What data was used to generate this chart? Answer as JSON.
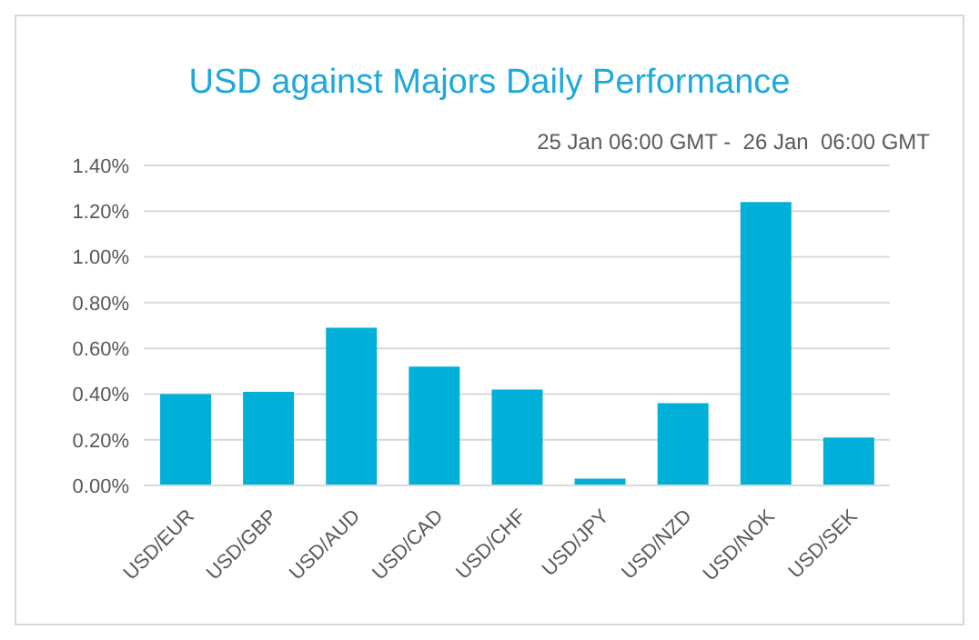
{
  "chart_data": {
    "type": "bar",
    "title": "USD against Majors Daily Performance",
    "subtitle": "25 Jan 06:00 GMT -  26 Jan  06:00 GMT",
    "categories": [
      "USD/EUR",
      "USD/GBP",
      "USD/AUD",
      "USD/CAD",
      "USD/CHF",
      "USD/JPY",
      "USD/NZD",
      "USD/NOK",
      "USD/SEK"
    ],
    "values": [
      0.4,
      0.41,
      0.69,
      0.52,
      0.42,
      0.03,
      0.36,
      1.24,
      0.21
    ],
    "color": "#00b0d8",
    "ylim": [
      0,
      1.4
    ],
    "yticks": [
      {
        "value": 0,
        "label": "0.00%"
      },
      {
        "value": 0.2,
        "label": "0.20%"
      },
      {
        "value": 0.4,
        "label": "0.40%"
      },
      {
        "value": 0.6,
        "label": "0.60%"
      },
      {
        "value": 0.8,
        "label": "0.80%"
      },
      {
        "value": 1,
        "label": "1.00%"
      },
      {
        "value": 1.2,
        "label": "1.20%"
      },
      {
        "value": 1.4,
        "label": "1.40%"
      }
    ],
    "grid": "y"
  }
}
